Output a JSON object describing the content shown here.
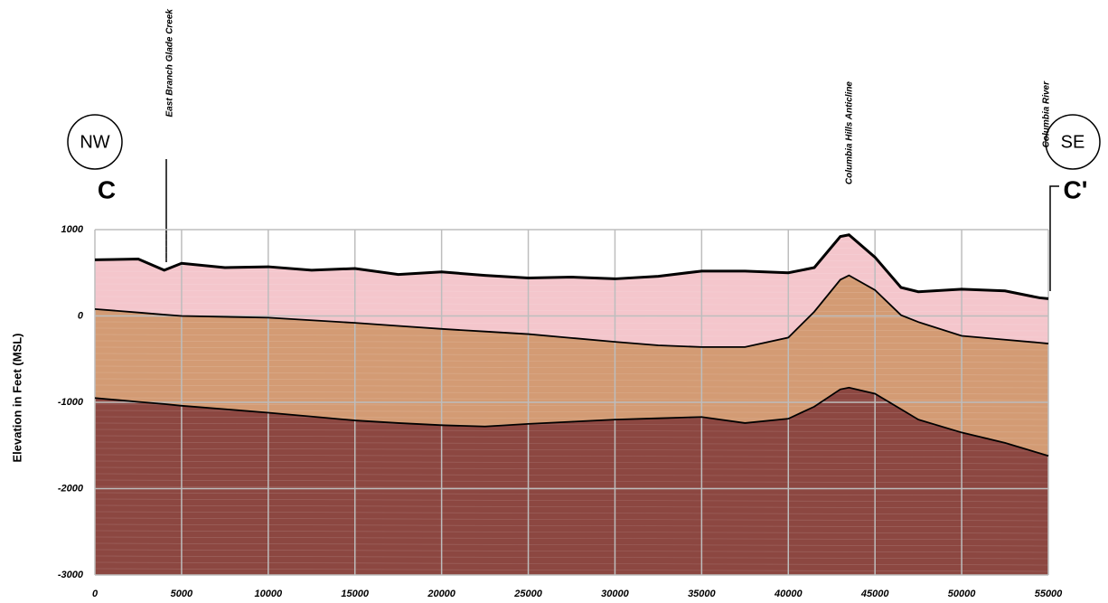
{
  "chart_data": {
    "type": "area",
    "y_label": "Elevation in Feet (MSL)",
    "direction_left": "NW",
    "direction_right": "SE",
    "section_left": "C",
    "section_right": "C'",
    "annotations": [
      {
        "text": "East Branch Glade Creek"
      },
      {
        "text": "Columbia Hills Anticline"
      },
      {
        "text": "Columbia River"
      }
    ],
    "x": [
      0,
      2500,
      4000,
      5000,
      7500,
      10000,
      12500,
      15000,
      17500,
      20000,
      22500,
      25000,
      27500,
      30000,
      32500,
      35000,
      37500,
      40000,
      41500,
      43000,
      43500,
      45000,
      46500,
      47500,
      50000,
      52500,
      54500,
      55000
    ],
    "series": [
      {
        "color": "#f4c6cc",
        "values": [
          650,
          660,
          530,
          610,
          560,
          570,
          530,
          550,
          480,
          510,
          470,
          440,
          450,
          430,
          460,
          520,
          520,
          500,
          560,
          920,
          940,
          680,
          330,
          280,
          310,
          290,
          210,
          200
        ]
      },
      {
        "color": "#d39b74",
        "values": [
          80,
          40,
          15,
          0,
          -10,
          -20,
          -50,
          -80,
          -115,
          -150,
          -180,
          -210,
          -255,
          -300,
          -340,
          -360,
          -360,
          -250,
          50,
          420,
          470,
          300,
          10,
          -70,
          -230,
          -275,
          -310,
          -320
        ]
      },
      {
        "color": "#8c4741",
        "values": [
          -950,
          -995,
          -1020,
          -1040,
          -1080,
          -1120,
          -1165,
          -1210,
          -1240,
          -1265,
          -1280,
          -1250,
          -1225,
          -1200,
          -1185,
          -1170,
          -1240,
          -1190,
          -1050,
          -850,
          -830,
          -900,
          -1080,
          -1200,
          -1350,
          -1470,
          -1590,
          -1620
        ]
      }
    ],
    "xlim": [
      0,
      55000
    ],
    "xticks": [
      0,
      5000,
      10000,
      15000,
      20000,
      25000,
      30000,
      35000,
      40000,
      45000,
      50000,
      55000
    ],
    "ylim": [
      -3000,
      1000
    ],
    "yticks": [
      -3000,
      -2000,
      -1000,
      0,
      1000
    ],
    "grid": true
  }
}
